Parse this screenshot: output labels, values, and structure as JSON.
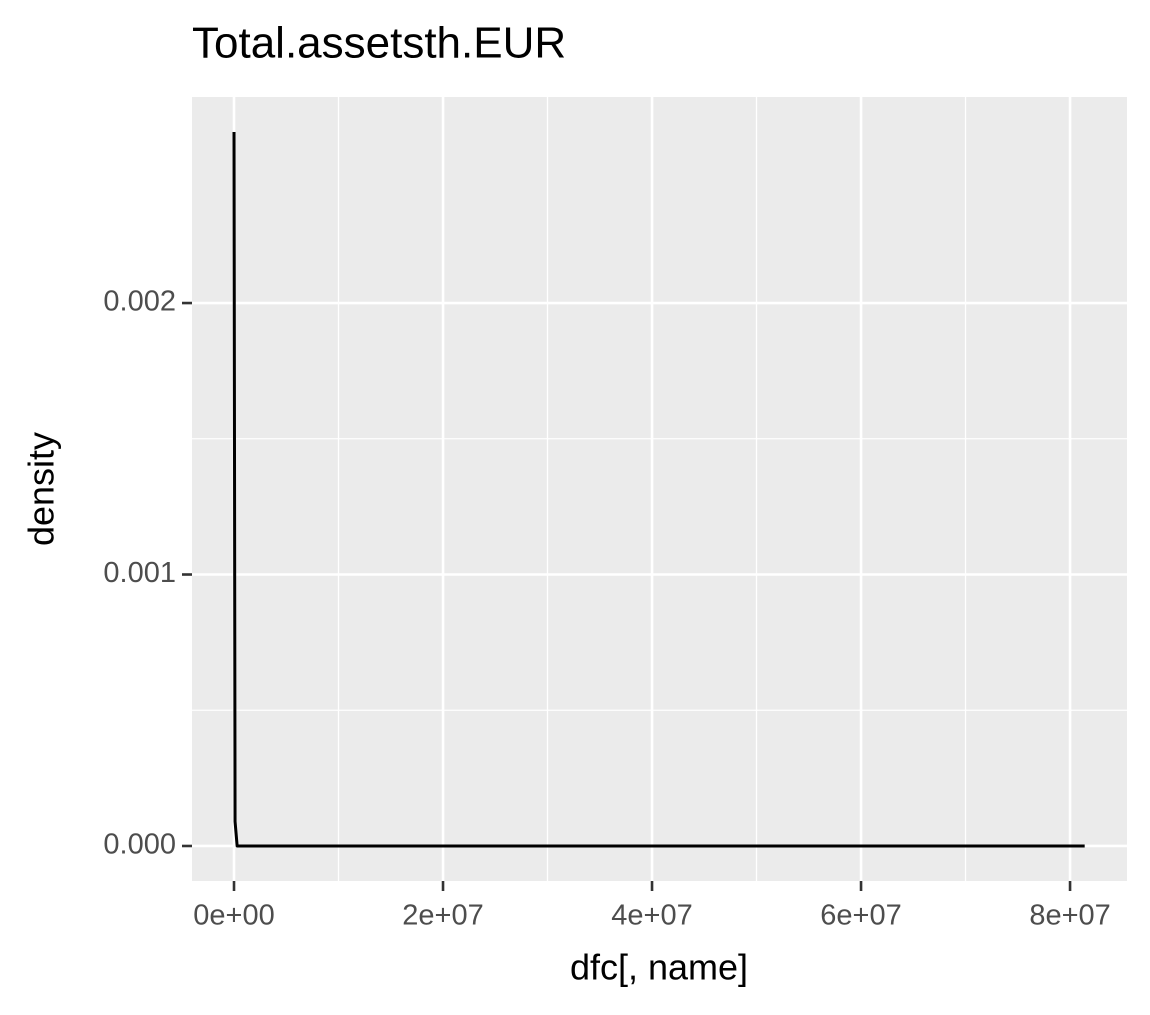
{
  "chart_data": {
    "type": "line",
    "title": "Total.assetsth.EUR",
    "x_label": "dfc[, name]",
    "y_label": "density",
    "series": [
      {
        "name": "density",
        "color": "#000000",
        "x": [
          0,
          100000,
          300000,
          81400000
        ],
        "values": [
          0.00263,
          9e-05,
          0,
          0
        ]
      }
    ],
    "xlim": [
      -4020000,
      85450000
    ],
    "xticks": [
      {
        "value": 0,
        "label": "0e+00"
      },
      {
        "value": 20000000,
        "label": "2e+07"
      },
      {
        "value": 40000000,
        "label": "4e+07"
      },
      {
        "value": 60000000,
        "label": "6e+07"
      },
      {
        "value": 80000000,
        "label": "8e+07"
      }
    ],
    "ylim": [
      -0.000129,
      0.002759
    ],
    "yticks": [
      {
        "value": 0,
        "label": "0.000"
      },
      0.001,
      0.002
    ],
    "grid": true,
    "legend": false
  }
}
